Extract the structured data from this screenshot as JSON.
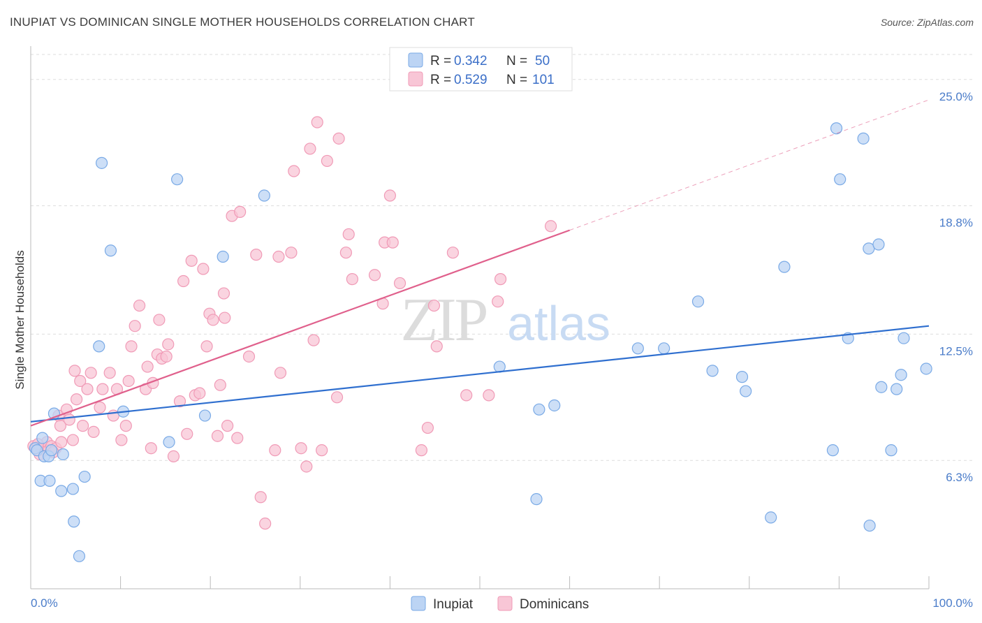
{
  "chart_data": {
    "type": "scatter",
    "title": "INUPIAT VS DOMINICAN SINGLE MOTHER HOUSEHOLDS CORRELATION CHART",
    "source": "Source: ZipAtlas.com",
    "xlabel": "",
    "ylabel": "Single Mother Households",
    "xlim": [
      0,
      100
    ],
    "ylim": [
      0,
      26.5
    ],
    "x_tick_labels": {
      "min": "0.0%",
      "max": "100.0%"
    },
    "y_ticks": [
      {
        "value": 6.3,
        "label": "6.3%"
      },
      {
        "value": 12.5,
        "label": "12.5%"
      },
      {
        "value": 18.8,
        "label": "18.8%"
      },
      {
        "value": 25.0,
        "label": "25.0%"
      }
    ],
    "watermark": {
      "part1": "ZIP",
      "part2": "atlas"
    },
    "legend": {
      "rows": [
        {
          "r_label": "R = ",
          "r_value": "0.342",
          "n_label": "N = ",
          "n_value": "50"
        },
        {
          "r_label": "R = ",
          "r_value": "0.529",
          "n_label": "N = ",
          "n_value": "101"
        }
      ]
    },
    "series": [
      {
        "name": "Inupiat",
        "color": "#7aaae6",
        "fill": "#bcd4f4",
        "line_color": "#2f6fcf",
        "trend": {
          "x0": 0,
          "y0": 8.2,
          "x1": 100,
          "y1": 12.9,
          "dashed_to": null
        },
        "points": [
          [
            0.5,
            6.9
          ],
          [
            0.7,
            6.8
          ],
          [
            1.1,
            5.3
          ],
          [
            1.3,
            7.4
          ],
          [
            1.5,
            6.5
          ],
          [
            2.0,
            6.5
          ],
          [
            2.1,
            5.3
          ],
          [
            2.3,
            6.8
          ],
          [
            2.6,
            8.6
          ],
          [
            3.4,
            4.8
          ],
          [
            3.6,
            6.6
          ],
          [
            4.7,
            4.9
          ],
          [
            4.8,
            3.3
          ],
          [
            5.4,
            1.6
          ],
          [
            6.0,
            5.5
          ],
          [
            7.6,
            11.9
          ],
          [
            7.9,
            20.9
          ],
          [
            8.9,
            16.6
          ],
          [
            10.3,
            8.7
          ],
          [
            15.4,
            7.2
          ],
          [
            16.3,
            20.1
          ],
          [
            19.4,
            8.5
          ],
          [
            21.4,
            16.3
          ],
          [
            26.0,
            19.3
          ],
          [
            52.2,
            10.9
          ],
          [
            56.3,
            4.4
          ],
          [
            56.6,
            8.8
          ],
          [
            58.3,
            9.0
          ],
          [
            67.6,
            11.8
          ],
          [
            70.5,
            11.8
          ],
          [
            74.3,
            14.1
          ],
          [
            75.9,
            10.7
          ],
          [
            79.2,
            10.4
          ],
          [
            79.6,
            9.7
          ],
          [
            82.4,
            3.5
          ],
          [
            83.9,
            15.8
          ],
          [
            89.3,
            6.8
          ],
          [
            89.7,
            22.6
          ],
          [
            90.1,
            20.1
          ],
          [
            91.0,
            12.3
          ],
          [
            92.7,
            22.1
          ],
          [
            93.3,
            16.7
          ],
          [
            93.4,
            3.1
          ],
          [
            94.4,
            16.9
          ],
          [
            94.7,
            9.9
          ],
          [
            95.8,
            6.8
          ],
          [
            96.4,
            9.8
          ],
          [
            96.9,
            10.5
          ],
          [
            97.2,
            12.3
          ],
          [
            99.7,
            10.8
          ]
        ]
      },
      {
        "name": "Dominicans",
        "color": "#f09ab6",
        "fill": "#f8c6d6",
        "line_color": "#e0608c",
        "trend": {
          "x0": 0,
          "y0": 8.0,
          "x1": 60,
          "y1": 17.6,
          "dashed_to": {
            "x": 100,
            "y": 24.0
          }
        },
        "points": [
          [
            0.3,
            7.0
          ],
          [
            0.6,
            6.9
          ],
          [
            0.9,
            6.8
          ],
          [
            1.2,
            6.9
          ],
          [
            1.6,
            6.8
          ],
          [
            1.8,
            7.2
          ],
          [
            2.0,
            6.8
          ],
          [
            2.3,
            7.0
          ],
          [
            2.8,
            6.9
          ],
          [
            3.1,
            8.5
          ],
          [
            3.3,
            8.0
          ],
          [
            3.4,
            7.2
          ],
          [
            4.0,
            8.8
          ],
          [
            4.3,
            8.3
          ],
          [
            4.7,
            7.3
          ],
          [
            4.9,
            10.7
          ],
          [
            5.1,
            9.3
          ],
          [
            5.5,
            10.2
          ],
          [
            5.8,
            8.0
          ],
          [
            6.3,
            9.8
          ],
          [
            6.7,
            10.6
          ],
          [
            7.0,
            7.7
          ],
          [
            7.7,
            8.9
          ],
          [
            8.0,
            9.8
          ],
          [
            8.8,
            10.6
          ],
          [
            9.2,
            8.5
          ],
          [
            9.6,
            9.8
          ],
          [
            10.1,
            7.3
          ],
          [
            10.6,
            8.0
          ],
          [
            10.9,
            10.2
          ],
          [
            11.2,
            11.9
          ],
          [
            11.6,
            12.9
          ],
          [
            12.1,
            13.9
          ],
          [
            12.8,
            9.8
          ],
          [
            13.0,
            10.9
          ],
          [
            13.4,
            6.9
          ],
          [
            13.6,
            10.1
          ],
          [
            14.1,
            11.5
          ],
          [
            14.3,
            13.2
          ],
          [
            14.6,
            11.3
          ],
          [
            15.1,
            11.4
          ],
          [
            15.3,
            12.0
          ],
          [
            15.9,
            6.5
          ],
          [
            16.6,
            9.2
          ],
          [
            17.0,
            15.1
          ],
          [
            17.4,
            7.6
          ],
          [
            17.9,
            16.1
          ],
          [
            18.3,
            9.5
          ],
          [
            18.8,
            9.6
          ],
          [
            19.2,
            15.7
          ],
          [
            19.6,
            11.9
          ],
          [
            19.9,
            13.5
          ],
          [
            20.3,
            13.2
          ],
          [
            20.8,
            7.5
          ],
          [
            21.1,
            10.0
          ],
          [
            21.5,
            14.5
          ],
          [
            21.6,
            13.3
          ],
          [
            21.9,
            8.0
          ],
          [
            22.4,
            18.3
          ],
          [
            23.0,
            7.4
          ],
          [
            23.3,
            18.5
          ],
          [
            24.3,
            11.4
          ],
          [
            25.1,
            16.4
          ],
          [
            25.6,
            4.5
          ],
          [
            26.1,
            3.2
          ],
          [
            27.2,
            6.8
          ],
          [
            27.6,
            16.3
          ],
          [
            27.8,
            10.6
          ],
          [
            29.0,
            16.5
          ],
          [
            29.3,
            20.5
          ],
          [
            30.1,
            6.9
          ],
          [
            30.7,
            6.0
          ],
          [
            31.1,
            21.6
          ],
          [
            31.5,
            12.2
          ],
          [
            31.9,
            22.9
          ],
          [
            32.4,
            6.8
          ],
          [
            33.0,
            21.0
          ],
          [
            34.1,
            9.4
          ],
          [
            34.3,
            22.1
          ],
          [
            35.1,
            16.5
          ],
          [
            35.4,
            17.4
          ],
          [
            35.8,
            15.2
          ],
          [
            38.3,
            15.4
          ],
          [
            39.2,
            14.0
          ],
          [
            39.4,
            17.0
          ],
          [
            40.0,
            19.3
          ],
          [
            40.3,
            17.0
          ],
          [
            41.1,
            15.0
          ],
          [
            43.5,
            6.8
          ],
          [
            44.2,
            7.9
          ],
          [
            44.9,
            13.9
          ],
          [
            45.2,
            11.9
          ],
          [
            47.0,
            16.5
          ],
          [
            48.5,
            9.5
          ],
          [
            51.0,
            9.5
          ],
          [
            52.0,
            14.1
          ],
          [
            52.3,
            15.2
          ],
          [
            57.9,
            17.8
          ],
          [
            1.0,
            6.6
          ],
          [
            0.8,
            7.1
          ],
          [
            2.5,
            6.7
          ]
        ]
      }
    ]
  }
}
